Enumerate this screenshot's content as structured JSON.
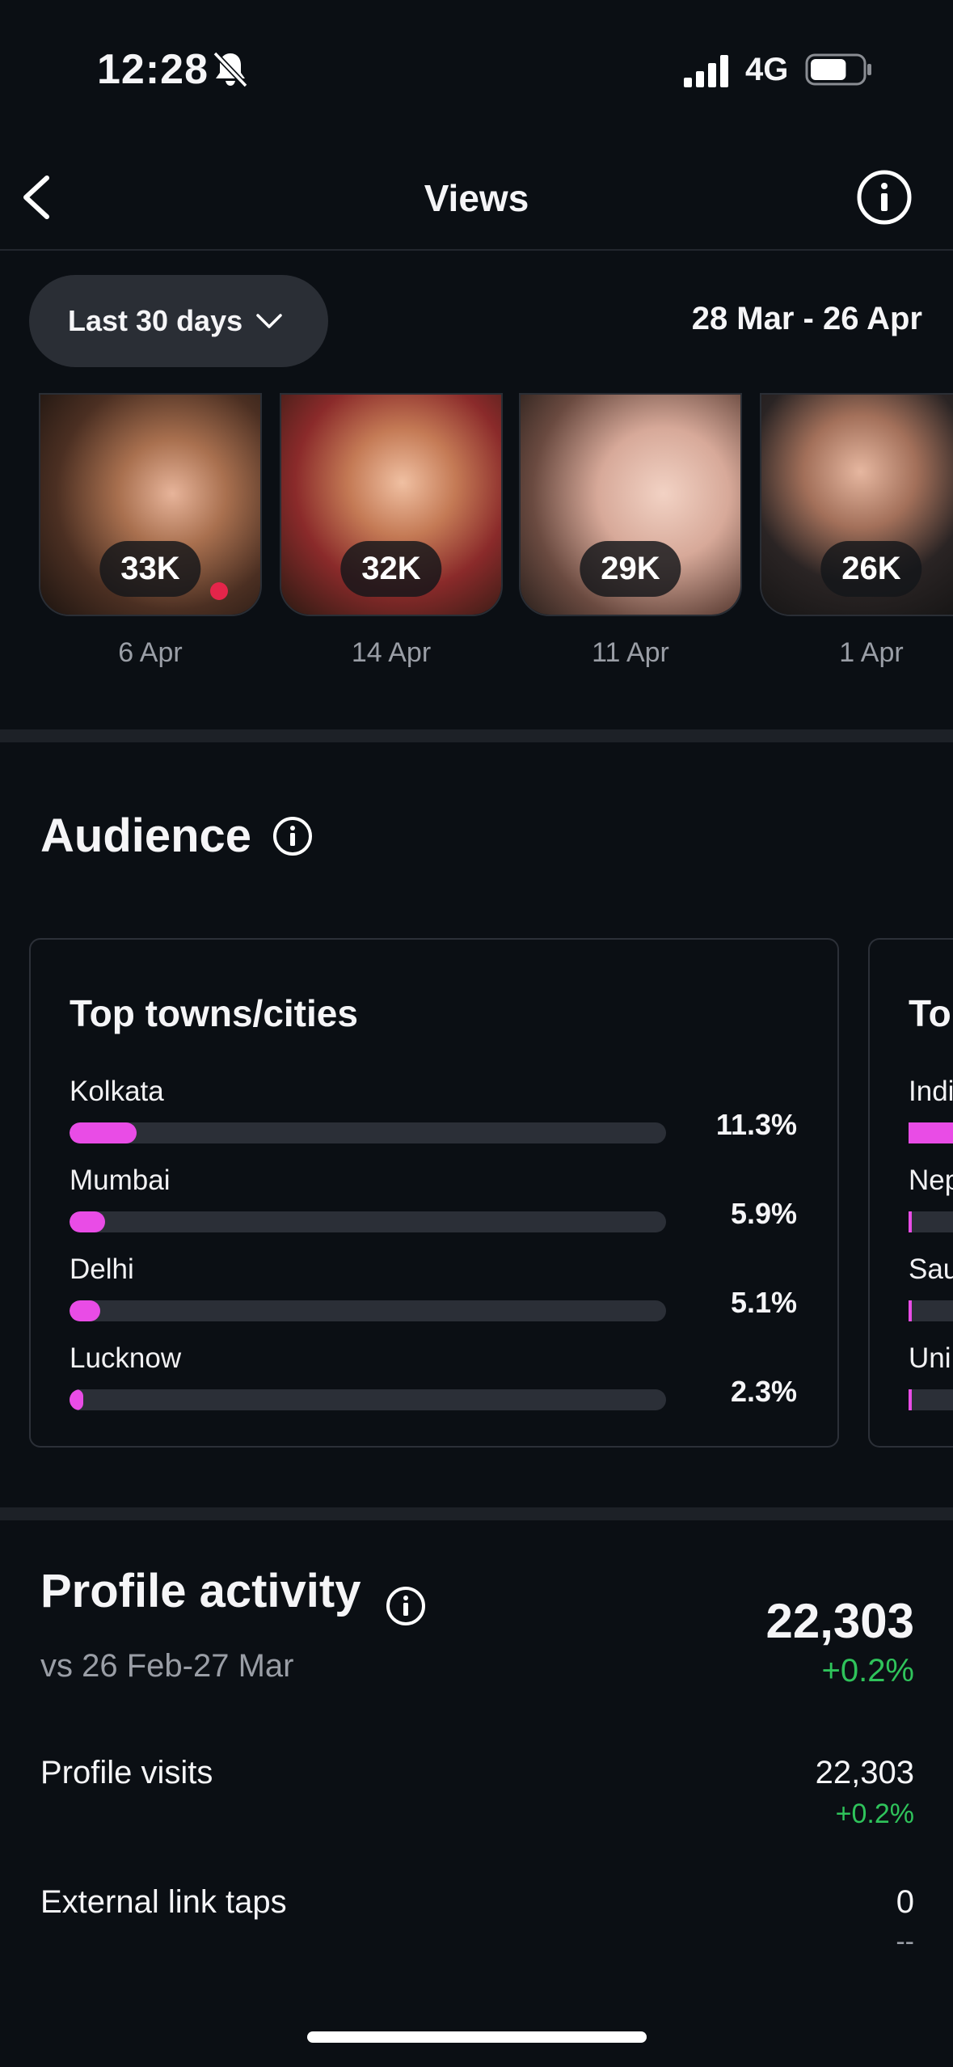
{
  "status_bar": {
    "time": "12:28",
    "network": "4G",
    "battery_level": 0.7
  },
  "nav": {
    "title": "Views"
  },
  "filter": {
    "range_label": "Last 30 days",
    "date_range": "28 Mar - 26 Apr"
  },
  "reels": [
    {
      "count": "33K",
      "date": "6 Apr"
    },
    {
      "count": "32K",
      "date": "14 Apr"
    },
    {
      "count": "29K",
      "date": "11 Apr"
    },
    {
      "count": "26K",
      "date": "1 Apr"
    }
  ],
  "audience": {
    "title": "Audience",
    "cities_card": {
      "title": "Top towns/cities",
      "rows": [
        {
          "name": "Kolkata",
          "pct": "11.3%",
          "fill": 0.113
        },
        {
          "name": "Mumbai",
          "pct": "5.9%",
          "fill": 0.059
        },
        {
          "name": "Delhi",
          "pct": "5.1%",
          "fill": 0.051
        },
        {
          "name": "Lucknow",
          "pct": "2.3%",
          "fill": 0.023
        }
      ]
    },
    "countries_card": {
      "title": "To",
      "rows": [
        {
          "name": "Indi"
        },
        {
          "name": "Nep"
        },
        {
          "name": "Sau"
        },
        {
          "name": "Uni"
        }
      ]
    }
  },
  "profile_activity": {
    "title": "Profile activity",
    "comparison": "vs 26 Feb-27 Mar",
    "total": "22,303",
    "total_delta": "+0.2%",
    "metrics": [
      {
        "label": "Profile visits",
        "value": "22,303",
        "delta": "+0.2%"
      },
      {
        "label": "External link taps",
        "value": "0",
        "delta": "--"
      }
    ]
  },
  "colors": {
    "accent_bar": "#e94ce6",
    "positive": "#2fc35b",
    "background": "#0b0f14"
  }
}
